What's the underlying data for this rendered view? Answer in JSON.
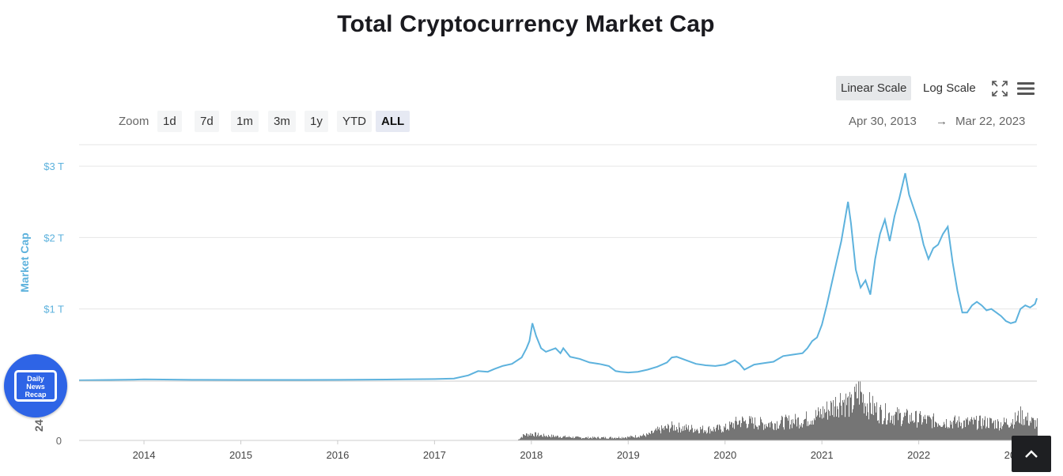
{
  "title": "Total Cryptocurrency Market Cap",
  "scale_buttons": {
    "linear": "Linear Scale",
    "log": "Log Scale",
    "active": "linear"
  },
  "icons": {
    "fullscreen": "fullscreen-icon",
    "menu": "hamburger-menu-icon",
    "scroll_top": "chevron-up-icon"
  },
  "zoom": {
    "label": "Zoom",
    "buttons": [
      "1d",
      "7d",
      "1m",
      "3m",
      "1y",
      "YTD",
      "ALL"
    ],
    "active": "ALL"
  },
  "range": {
    "from": "Apr 30, 2013",
    "arrow": "→",
    "to": "Mar 22, 2023"
  },
  "logo": {
    "text": "Daily\nNews\nRecap"
  },
  "colors": {
    "line": "#5db2dd",
    "volume": "#757575",
    "grid": "#e6e6e6",
    "axis_label": "#5db2dd"
  },
  "chart_data": {
    "type": "line",
    "title": "Total Cryptocurrency Market Cap",
    "ylabel": "Market Cap",
    "y_unit": "$ trillions",
    "ylim": [
      0,
      3.3
    ],
    "yticks": [
      1,
      2,
      3
    ],
    "ytick_labels": [
      "$1 T",
      "$2 T",
      "$3 T"
    ],
    "xlim": [
      2013.33,
      2023.22
    ],
    "xticks": [
      2014,
      2015,
      2016,
      2017,
      2018,
      2019,
      2020,
      2021,
      2022,
      2023
    ],
    "xtick_labels": [
      "2014",
      "2015",
      "2016",
      "2017",
      "2018",
      "2019",
      "2020",
      "2021",
      "2022",
      "2023"
    ],
    "grid": true,
    "series": [
      {
        "name": "Market Cap",
        "x": [
          2013.33,
          2013.9,
          2014.0,
          2014.5,
          2015.0,
          2015.5,
          2016.0,
          2016.5,
          2017.0,
          2017.2,
          2017.35,
          2017.45,
          2017.55,
          2017.62,
          2017.7,
          2017.8,
          2017.9,
          2017.95,
          2017.98,
          2018.01,
          2018.05,
          2018.1,
          2018.15,
          2018.25,
          2018.3,
          2018.33,
          2018.4,
          2018.5,
          2018.6,
          2018.7,
          2018.8,
          2018.87,
          2018.92,
          2019.0,
          2019.1,
          2019.2,
          2019.3,
          2019.4,
          2019.45,
          2019.5,
          2019.6,
          2019.7,
          2019.8,
          2019.9,
          2020.0,
          2020.1,
          2020.15,
          2020.2,
          2020.3,
          2020.4,
          2020.5,
          2020.6,
          2020.7,
          2020.8,
          2020.85,
          2020.9,
          2020.95,
          2021.0,
          2021.05,
          2021.1,
          2021.15,
          2021.2,
          2021.27,
          2021.3,
          2021.35,
          2021.4,
          2021.45,
          2021.5,
          2021.55,
          2021.6,
          2021.65,
          2021.7,
          2021.75,
          2021.8,
          2021.86,
          2021.9,
          2021.95,
          2022.0,
          2022.05,
          2022.1,
          2022.15,
          2022.2,
          2022.25,
          2022.3,
          2022.35,
          2022.4,
          2022.45,
          2022.5,
          2022.55,
          2022.6,
          2022.65,
          2022.7,
          2022.75,
          2022.8,
          2022.85,
          2022.9,
          2022.95,
          2023.0,
          2023.05,
          2023.1,
          2023.15,
          2023.2,
          2023.22
        ],
        "y": [
          0.0,
          0.01,
          0.013,
          0.007,
          0.005,
          0.006,
          0.007,
          0.011,
          0.018,
          0.025,
          0.07,
          0.13,
          0.12,
          0.16,
          0.2,
          0.23,
          0.32,
          0.45,
          0.55,
          0.8,
          0.62,
          0.45,
          0.4,
          0.45,
          0.38,
          0.45,
          0.33,
          0.3,
          0.25,
          0.23,
          0.2,
          0.13,
          0.12,
          0.11,
          0.12,
          0.15,
          0.19,
          0.25,
          0.32,
          0.33,
          0.28,
          0.23,
          0.21,
          0.2,
          0.22,
          0.28,
          0.23,
          0.15,
          0.22,
          0.24,
          0.26,
          0.34,
          0.36,
          0.38,
          0.45,
          0.55,
          0.6,
          0.78,
          1.05,
          1.35,
          1.65,
          1.95,
          2.5,
          2.2,
          1.55,
          1.3,
          1.4,
          1.2,
          1.7,
          2.05,
          2.25,
          1.95,
          2.3,
          2.55,
          2.9,
          2.6,
          2.4,
          2.2,
          1.9,
          1.7,
          1.85,
          1.9,
          2.05,
          2.15,
          1.65,
          1.25,
          0.95,
          0.95,
          1.05,
          1.1,
          1.05,
          0.98,
          1.0,
          0.95,
          0.9,
          0.83,
          0.8,
          0.82,
          1.0,
          1.05,
          1.02,
          1.07,
          1.15
        ]
      },
      {
        "name": "24h Vol",
        "x": [
          2013.33,
          2017.85,
          2017.92,
          2018.0,
          2018.1,
          2018.3,
          2018.5,
          2018.8,
          2019.0,
          2019.2,
          2019.3,
          2019.45,
          2019.6,
          2019.8,
          2020.0,
          2020.15,
          2020.25,
          2020.4,
          2020.6,
          2020.8,
          2020.95,
          2021.05,
          2021.1,
          2021.2,
          2021.3,
          2021.38,
          2021.45,
          2021.6,
          2021.75,
          2021.85,
          2021.95,
          2022.1,
          2022.25,
          2022.4,
          2022.55,
          2022.7,
          2022.85,
          2023.0,
          2023.05,
          2023.15,
          2023.22
        ],
        "y": [
          0.0,
          0.0,
          0.1,
          0.12,
          0.09,
          0.07,
          0.05,
          0.05,
          0.06,
          0.1,
          0.18,
          0.25,
          0.22,
          0.2,
          0.22,
          0.35,
          0.33,
          0.3,
          0.33,
          0.37,
          0.45,
          0.55,
          0.6,
          0.75,
          0.62,
          0.9,
          0.68,
          0.5,
          0.45,
          0.42,
          0.4,
          0.36,
          0.34,
          0.33,
          0.32,
          0.33,
          0.3,
          0.38,
          0.45,
          0.35,
          0.3
        ]
      }
    ],
    "volume_axis": {
      "label": "24",
      "tick": "0"
    }
  }
}
